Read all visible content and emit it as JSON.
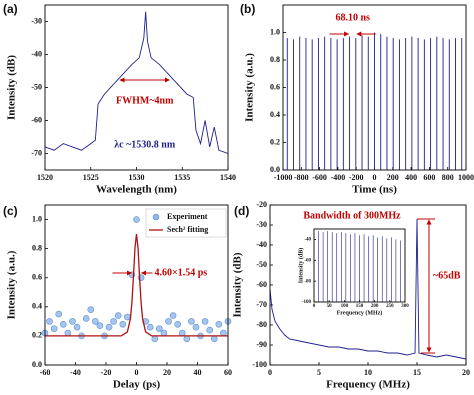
{
  "chart_data": [
    {
      "type": "line",
      "panel_label": "(a)",
      "xlabel": "Wavelength (nm)",
      "ylabel": "Intensity (dB)",
      "xlim": [
        1520,
        1540
      ],
      "ylim": [
        -75,
        -25
      ],
      "xticks": [
        1520,
        1525,
        1530,
        1535,
        1540
      ],
      "yticks": [
        -30,
        -40,
        -50,
        -60,
        -70
      ],
      "color": "#1f1f8f",
      "x": [
        1520,
        1521,
        1522,
        1523,
        1524,
        1525,
        1525.5,
        1525.8,
        1526.5,
        1527.5,
        1528.5,
        1529.5,
        1530.3,
        1530.8,
        1531,
        1531.2,
        1531.6,
        1532.5,
        1533.5,
        1534.5,
        1535.5,
        1536.2,
        1536.5,
        1537,
        1537.5,
        1538,
        1538.5,
        1539,
        1540
      ],
      "values": [
        -68,
        -69,
        -67,
        -68,
        -69,
        -67,
        -66,
        -55,
        -52,
        -49,
        -46,
        -43,
        -41,
        -35,
        -27,
        -36,
        -41,
        -43,
        -46,
        -49,
        -52,
        -53,
        -63,
        -67,
        -60,
        -68,
        -62,
        -69,
        -70
      ],
      "annotations": [
        "FWHM~4nm",
        "λc ~1530.8 nm"
      ]
    },
    {
      "type": "stem",
      "panel_label": "(b)",
      "xlabel": "Time (ns)",
      "ylabel": "Intensity (a.u.)",
      "xlim": [
        -1000,
        1000
      ],
      "ylim": [
        0,
        1.2
      ],
      "xticks": [
        -1000,
        -800,
        -600,
        -400,
        -200,
        0,
        200,
        400,
        600,
        800,
        1000
      ],
      "yticks": [
        {
          "value": 0,
          "label": "0.0"
        },
        0.2,
        0.4,
        0.6,
        0.8,
        {
          "value": 1,
          "label": "1.0"
        }
      ],
      "color": "#1f1f8f",
      "x": [
        -953.4,
        -885.3,
        -817.2,
        -749.1,
        -681.0,
        -612.9,
        -544.8,
        -476.7,
        -408.6,
        -340.5,
        -272.4,
        -204.3,
        -136.2,
        -68.1,
        0,
        68.1,
        136.2,
        204.3,
        272.4,
        340.5,
        408.6,
        476.7,
        544.8,
        612.9,
        681.0,
        749.1,
        817.2,
        885.3,
        953.4
      ],
      "values": [
        0.96,
        0.95,
        0.97,
        0.96,
        0.95,
        0.96,
        0.97,
        0.96,
        0.95,
        0.96,
        0.97,
        0.96,
        0.98,
        0.97,
        1.0,
        0.99,
        0.97,
        0.96,
        0.95,
        0.96,
        0.97,
        0.96,
        0.95,
        0.96,
        0.97,
        0.96,
        0.95,
        0.96,
        0.96
      ],
      "annotations": [
        "68.10 ns"
      ]
    },
    {
      "type": "scatter",
      "panel_label": "(c)",
      "xlabel": "Delay (ps)",
      "ylabel": "Intensity (a.u.)",
      "xlim": [
        -60,
        60
      ],
      "ylim": [
        0,
        1.1
      ],
      "xticks": [
        -60,
        -40,
        -20,
        0,
        20,
        40,
        60
      ],
      "yticks": [
        {
          "value": 0,
          "label": "0.0"
        },
        0.2,
        0.4,
        0.6,
        0.8,
        {
          "value": 1,
          "label": "1.0"
        }
      ],
      "series": [
        {
          "name": "Experiment",
          "type": "scatter",
          "color": "#8fb6e8",
          "x": [
            -60,
            -57,
            -54,
            -51,
            -48,
            -45,
            -42,
            -39,
            -36,
            -33,
            -30,
            -27,
            -24,
            -21,
            -18,
            -15,
            -12,
            -9,
            -6,
            -3,
            0,
            3,
            6,
            9,
            12,
            15,
            18,
            21,
            24,
            27,
            30,
            33,
            36,
            39,
            42,
            45,
            48,
            51,
            54,
            57,
            60
          ],
          "values": [
            0.22,
            0.3,
            0.25,
            0.35,
            0.28,
            0.22,
            0.3,
            0.26,
            0.2,
            0.32,
            0.38,
            0.3,
            0.27,
            0.2,
            0.26,
            0.3,
            0.34,
            0.28,
            0.33,
            0.62,
            1.0,
            0.6,
            0.3,
            0.26,
            0.18,
            0.25,
            0.22,
            0.3,
            0.34,
            0.28,
            0.22,
            0.18,
            0.3,
            0.26,
            0.2,
            0.3,
            0.24,
            0.18,
            0.28,
            0.22,
            0.3
          ]
        },
        {
          "name": "Sech² fitting",
          "type": "line",
          "color": "#b01010",
          "x": [
            -60,
            -20,
            -10,
            -6,
            -4,
            -3,
            -2,
            -1,
            0,
            1,
            2,
            3,
            4,
            6,
            10,
            20,
            60
          ],
          "values": [
            0.2,
            0.2,
            0.2,
            0.227,
            0.318,
            0.431,
            0.607,
            0.806,
            0.9,
            0.806,
            0.607,
            0.431,
            0.318,
            0.227,
            0.2,
            0.2,
            0.2
          ]
        }
      ],
      "annotations": [
        "4.60×1.54 ps"
      ]
    },
    {
      "type": "line",
      "panel_label": "(d)",
      "xlabel": "Frequency (MHz)",
      "ylabel": "Intensity (dB)",
      "xlim": [
        0,
        20
      ],
      "ylim": [
        -100,
        -20
      ],
      "xticks": [
        0,
        5,
        10,
        15,
        20
      ],
      "yticks": [
        -20,
        -30,
        -40,
        -50,
        -60,
        -70,
        -80,
        -90,
        -100
      ],
      "color": "#1f1f8f",
      "x": [
        0,
        0.2,
        0.5,
        1,
        1.5,
        2,
        3,
        4,
        5,
        6,
        7,
        8,
        9,
        10,
        11,
        12,
        13,
        14,
        14.8,
        15,
        15.2,
        16,
        17,
        18,
        19,
        20
      ],
      "values": [
        -62,
        -72,
        -78,
        -82,
        -85,
        -87,
        -88,
        -89,
        -90,
        -91,
        -91,
        -92,
        -92,
        -93,
        -93,
        -94,
        -94,
        -95,
        -94,
        -27,
        -94,
        -95,
        -96,
        -95,
        -96,
        -97
      ],
      "annotations": [
        "Bandwidth  of 300MHz",
        "~65dB"
      ]
    },
    {
      "type": "stem",
      "xlabel": "Frequency (MHz)",
      "ylabel": "Intensity (dB)",
      "xlim": [
        0,
        300
      ],
      "ylim": [
        -100,
        -30
      ],
      "xticks": [
        0,
        50,
        100,
        150,
        200,
        250,
        300
      ],
      "yticks": [
        -40,
        -60,
        -80,
        -100
      ],
      "color": "#1f1f8f",
      "x": [
        15,
        30,
        45,
        60,
        75,
        90,
        105,
        120,
        135,
        150,
        165,
        180,
        195,
        210,
        225,
        240,
        255,
        270,
        285
      ],
      "values": [
        -32,
        -33,
        -32,
        -33,
        -34,
        -33,
        -34,
        -35,
        -34,
        -36,
        -35,
        -37,
        -36,
        -38,
        -37,
        -39,
        -38,
        -40,
        -41
      ]
    }
  ]
}
